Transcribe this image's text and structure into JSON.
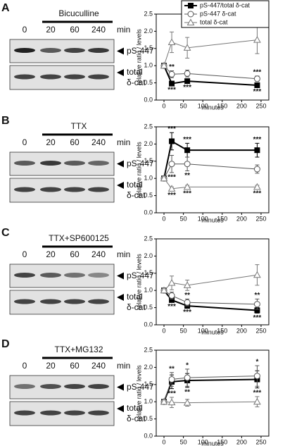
{
  "panels": [
    {
      "letter": "A",
      "treatment": "Bicuculline",
      "lanes": [
        "0",
        "20",
        "60",
        "240"
      ],
      "unit": "min",
      "blots": [
        "pS-447",
        [
          "total",
          "δ-cat"
        ]
      ]
    },
    {
      "letter": "B",
      "treatment": "TTX",
      "lanes": [
        "0",
        "20",
        "60",
        "240"
      ],
      "unit": "min",
      "blots": [
        "pS-447",
        [
          "total",
          "δ-cat"
        ]
      ]
    },
    {
      "letter": "C",
      "treatment": "TTX+SP600125",
      "lanes": [
        "0",
        "20",
        "60",
        "240"
      ],
      "unit": "min",
      "blots": [
        "pS-447",
        [
          "total",
          "δ-cat"
        ]
      ]
    },
    {
      "letter": "D",
      "treatment": "TTX+MG132",
      "lanes": [
        "0",
        "20",
        "60",
        "240"
      ],
      "unit": "min",
      "blots": [
        "pS-447",
        [
          "total",
          "δ-cat"
        ]
      ]
    }
  ],
  "chart_data": [
    {
      "type": "line",
      "x_label": "minutes",
      "y_label": "relative ratio / levels",
      "legend": "top-right",
      "x": [
        0,
        20,
        60,
        240
      ],
      "xlim": [
        -20,
        270
      ],
      "xticks": [
        0,
        50,
        100,
        150,
        200,
        250
      ],
      "ylim": [
        0,
        2.5
      ],
      "yticks": [
        {
          "value": 0,
          "label": "0.0"
        },
        0.5,
        {
          "value": 1,
          "label": "1.0"
        },
        1.5,
        {
          "value": 2,
          "label": "2.0"
        },
        2.5
      ],
      "series": [
        {
          "name": "pS-447/total δ-cat",
          "color": "#000000",
          "marker": "square",
          "filled": true,
          "values": [
            1.0,
            0.48,
            0.55,
            0.43
          ],
          "errors": [
            0.03,
            0.05,
            0.05,
            0.05
          ],
          "significance": [
            null,
            "***",
            "***",
            "***"
          ],
          "significance_side": "below"
        },
        {
          "name": "pS-447 δ-cat",
          "color": "#555555",
          "marker": "circle",
          "filled": false,
          "values": [
            1.0,
            0.75,
            0.77,
            0.62
          ],
          "errors": [
            0.05,
            0.1,
            0.1,
            0.08
          ],
          "significance": [
            null,
            "**",
            null,
            "***"
          ],
          "significance_side": "above"
        },
        {
          "name": "total δ-cat",
          "color": "#777777",
          "marker": "triangle",
          "filled": false,
          "values": [
            1.0,
            1.68,
            1.52,
            1.75
          ],
          "errors": [
            0.05,
            0.3,
            0.3,
            0.4
          ],
          "significance": [
            null,
            null,
            null,
            "***"
          ],
          "significance_side": "above"
        }
      ]
    },
    {
      "type": "line",
      "x_label": "minutes",
      "y_label": "relative ratio / levels",
      "x": [
        0,
        20,
        60,
        240
      ],
      "xlim": [
        -20,
        270
      ],
      "xticks": [
        0,
        50,
        100,
        150,
        200,
        250
      ],
      "ylim": [
        0,
        2.5
      ],
      "yticks": [
        {
          "value": 0,
          "label": "0.0"
        },
        0.5,
        {
          "value": 1,
          "label": "1.0"
        },
        1.5,
        {
          "value": 2,
          "label": "2.0"
        },
        2.5
      ],
      "series": [
        {
          "color": "#000000",
          "marker": "square",
          "filled": true,
          "values": [
            1.0,
            2.08,
            1.82,
            1.82
          ],
          "errors": [
            0.05,
            0.25,
            0.2,
            0.2
          ],
          "significance": [
            null,
            "***",
            "***",
            "***"
          ],
          "significance_side": "above"
        },
        {
          "color": "#555555",
          "marker": "circle",
          "filled": false,
          "values": [
            1.0,
            1.42,
            1.42,
            1.27
          ],
          "errors": [
            0.05,
            0.25,
            0.2,
            0.12
          ],
          "significance": [
            null,
            "***",
            "**",
            null
          ],
          "significance_side": "below"
        },
        {
          "color": "#777777",
          "marker": "triangle",
          "filled": false,
          "values": [
            1.0,
            0.7,
            0.75,
            0.75
          ],
          "errors": [
            0.03,
            0.05,
            0.05,
            0.05
          ],
          "significance": [
            null,
            "***",
            "***",
            "***"
          ],
          "significance_side": "below"
        }
      ]
    },
    {
      "type": "line",
      "x_label": "minutes",
      "y_label": "relative ratio / levels",
      "x": [
        0,
        20,
        60,
        240
      ],
      "xlim": [
        -20,
        270
      ],
      "xticks": [
        0,
        50,
        100,
        150,
        200,
        250
      ],
      "ylim": [
        0,
        2.5
      ],
      "yticks": [
        {
          "value": 0,
          "label": "0.0"
        },
        0.5,
        {
          "value": 1,
          "label": "1.0"
        },
        1.5,
        {
          "value": 2,
          "label": "2.0"
        },
        2.5
      ],
      "series": [
        {
          "color": "#000000",
          "marker": "square",
          "filled": true,
          "values": [
            1.0,
            0.72,
            0.55,
            0.42
          ],
          "errors": [
            0.03,
            0.05,
            0.05,
            0.08
          ],
          "significance": [
            null,
            "***",
            "***",
            "***"
          ],
          "significance_side": "below"
        },
        {
          "color": "#555555",
          "marker": "circle",
          "filled": false,
          "values": [
            1.0,
            0.85,
            0.65,
            0.6
          ],
          "errors": [
            0.05,
            0.1,
            0.1,
            0.15
          ],
          "significance": [
            null,
            null,
            "**",
            "**"
          ],
          "significance_side": "above"
        },
        {
          "color": "#777777",
          "marker": "triangle",
          "filled": false,
          "values": [
            1.0,
            1.22,
            1.15,
            1.45
          ],
          "errors": [
            0.05,
            0.2,
            0.15,
            0.3
          ]
        }
      ]
    },
    {
      "type": "line",
      "x_label": "minutes",
      "y_label": "relative ratio / levels",
      "x": [
        0,
        20,
        60,
        240
      ],
      "xlim": [
        -20,
        270
      ],
      "xticks": [
        0,
        50,
        100,
        150,
        200,
        250
      ],
      "ylim": [
        0,
        2.5
      ],
      "yticks": [
        {
          "value": 0,
          "label": "0.0"
        },
        0.5,
        {
          "value": 1,
          "label": "1.0"
        },
        1.5,
        {
          "value": 2,
          "label": "2.0"
        },
        2.5
      ],
      "series": [
        {
          "color": "#000000",
          "marker": "square",
          "filled": true,
          "values": [
            1.0,
            1.58,
            1.62,
            1.65
          ],
          "errors": [
            0.05,
            0.2,
            0.2,
            0.25
          ],
          "significance": [
            null,
            "***",
            "**",
            "***"
          ],
          "significance_side": "below"
        },
        {
          "color": "#555555",
          "marker": "circle",
          "filled": false,
          "values": [
            1.0,
            1.65,
            1.7,
            1.75
          ],
          "errors": [
            0.05,
            0.2,
            0.25,
            0.3
          ],
          "significance": [
            null,
            "**",
            "*",
            "*"
          ],
          "significance_side": "above"
        },
        {
          "color": "#777777",
          "marker": "triangle",
          "filled": false,
          "values": [
            1.0,
            0.98,
            0.97,
            1.0
          ],
          "errors": [
            0.05,
            0.15,
            0.1,
            0.15
          ]
        }
      ]
    }
  ]
}
